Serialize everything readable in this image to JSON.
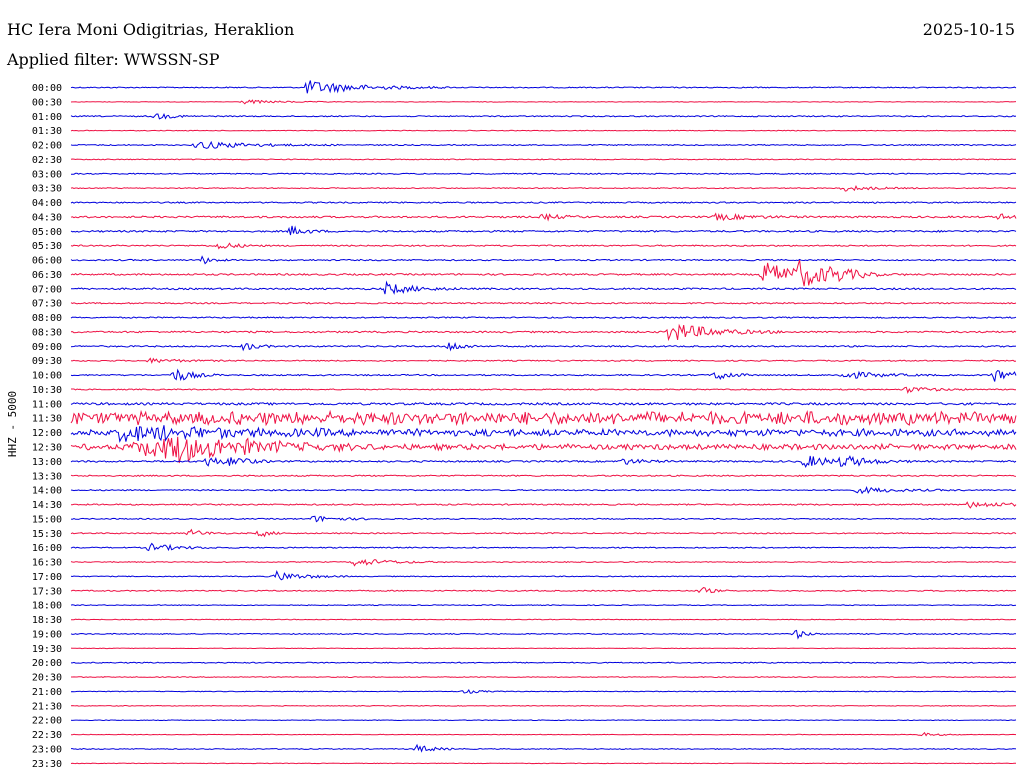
{
  "header": {
    "station": "HC Iera Moni Odigitrias, Heraklion",
    "date": "2025-10-15",
    "filter_label": "Applied filter:",
    "filter_value": "WWSSN-SP"
  },
  "colors": {
    "trace_odd": "#0000dd",
    "trace_even": "#ee1144",
    "background": "#ffffff"
  },
  "chart_data": {
    "type": "line",
    "ylabel": "HHZ - 5000",
    "rows": [
      "00:00",
      "00:30",
      "01:00",
      "01:30",
      "02:00",
      "02:30",
      "03:00",
      "03:30",
      "04:00",
      "04:30",
      "05:00",
      "05:30",
      "06:00",
      "06:30",
      "07:00",
      "07:30",
      "08:00",
      "08:30",
      "09:00",
      "09:30",
      "10:00",
      "10:30",
      "11:00",
      "11:30",
      "12:00",
      "12:30",
      "13:00",
      "13:30",
      "14:00",
      "14:30",
      "15:00",
      "15:30",
      "16:00",
      "16:30",
      "17:00",
      "17:30",
      "18:00",
      "18:30",
      "19:00",
      "19:30",
      "20:00",
      "20:30",
      "21:00",
      "21:30",
      "22:00",
      "22:30",
      "23:00",
      "23:30"
    ],
    "row_minutes": 30,
    "trace_minutes_per_row": [
      0,
      30
    ],
    "noise_level": [
      1,
      0.5,
      1,
      0.6,
      1,
      0.8,
      1,
      0.8,
      1.2,
      1.6,
      1.5,
      1.2,
      1.2,
      1.5,
      1.5,
      1.2,
      1.2,
      1.5,
      1.3,
      1,
      1.2,
      1,
      2,
      9,
      5,
      4,
      1.5,
      1.2,
      1,
      1.2,
      1,
      1,
      1,
      0.8,
      0.8,
      1,
      0.7,
      0.6,
      0.9,
      0.5,
      0.9,
      0.7,
      0.6,
      0.6,
      0.6,
      0.5,
      0.8,
      0.5
    ],
    "events": [
      {
        "row": "00:00",
        "minute": 7.5,
        "amp": 7,
        "dur": 1.5
      },
      {
        "row": "00:30",
        "minute": 5.5,
        "amp": 2,
        "dur": 1
      },
      {
        "row": "01:00",
        "minute": 2.7,
        "amp": 3,
        "dur": 0.5
      },
      {
        "row": "02:00",
        "minute": 4,
        "amp": 4,
        "dur": 1.5
      },
      {
        "row": "03:30",
        "minute": 24.5,
        "amp": 3,
        "dur": 0.8
      },
      {
        "row": "04:30",
        "minute": 15,
        "amp": 3,
        "dur": 0.5
      },
      {
        "row": "04:30",
        "minute": 20.5,
        "amp": 3,
        "dur": 1
      },
      {
        "row": "04:30",
        "minute": 29.5,
        "amp": 3,
        "dur": 0.4
      },
      {
        "row": "05:00",
        "minute": 7,
        "amp": 5,
        "dur": 0.4
      },
      {
        "row": "05:30",
        "minute": 4.7,
        "amp": 4,
        "dur": 0.5
      },
      {
        "row": "06:00",
        "minute": 4.2,
        "amp": 4,
        "dur": 0.3
      },
      {
        "row": "06:30",
        "minute": 22,
        "amp": 12,
        "dur": 1.2
      },
      {
        "row": "06:30",
        "minute": 23.1,
        "amp": 10,
        "dur": 0.8
      },
      {
        "row": "06:30",
        "minute": 24.1,
        "amp": 4,
        "dur": 0.8
      },
      {
        "row": "07:00",
        "minute": 10,
        "amp": 6,
        "dur": 0.8
      },
      {
        "row": "08:30",
        "minute": 19,
        "amp": 10,
        "dur": 1.2
      },
      {
        "row": "09:00",
        "minute": 5.5,
        "amp": 4,
        "dur": 0.4
      },
      {
        "row": "09:00",
        "minute": 12,
        "amp": 5,
        "dur": 0.4
      },
      {
        "row": "09:30",
        "minute": 2.5,
        "amp": 2,
        "dur": 1
      },
      {
        "row": "10:00",
        "minute": 3.3,
        "amp": 7,
        "dur": 0.5
      },
      {
        "row": "10:00",
        "minute": 20.5,
        "amp": 6,
        "dur": 0.4
      },
      {
        "row": "10:00",
        "minute": 24.5,
        "amp": 4,
        "dur": 1
      },
      {
        "row": "10:00",
        "minute": 29.3,
        "amp": 7,
        "dur": 0.6
      },
      {
        "row": "10:30",
        "minute": 26.5,
        "amp": 3,
        "dur": 0.8
      },
      {
        "row": "12:00",
        "minute": 1.5,
        "amp": 6,
        "dur": 2.5
      },
      {
        "row": "12:30",
        "minute": 2,
        "amp": 6,
        "dur": 2.5
      },
      {
        "row": "12:30",
        "minute": 3,
        "amp": 9,
        "dur": 2
      },
      {
        "row": "13:00",
        "minute": 4.3,
        "amp": 5,
        "dur": 0.5
      },
      {
        "row": "13:00",
        "minute": 5.1,
        "amp": 5,
        "dur": 0.5
      },
      {
        "row": "13:00",
        "minute": 17.5,
        "amp": 3,
        "dur": 0.6
      },
      {
        "row": "13:00",
        "minute": 23.3,
        "amp": 6,
        "dur": 0.8
      },
      {
        "row": "13:00",
        "minute": 24.5,
        "amp": 5,
        "dur": 0.8
      },
      {
        "row": "14:00",
        "minute": 25,
        "amp": 3,
        "dur": 1.2
      },
      {
        "row": "14:30",
        "minute": 28.5,
        "amp": 3,
        "dur": 1.2
      },
      {
        "row": "15:00",
        "minute": 7.7,
        "amp": 3,
        "dur": 0.8
      },
      {
        "row": "15:30",
        "minute": 3.8,
        "amp": 4,
        "dur": 0.4
      },
      {
        "row": "15:30",
        "minute": 6,
        "amp": 4,
        "dur": 0.3
      },
      {
        "row": "16:00",
        "minute": 2.5,
        "amp": 4,
        "dur": 0.8
      },
      {
        "row": "16:30",
        "minute": 9,
        "amp": 4,
        "dur": 1
      },
      {
        "row": "17:00",
        "minute": 6.5,
        "amp": 5,
        "dur": 0.8
      },
      {
        "row": "17:30",
        "minute": 20,
        "amp": 4,
        "dur": 0.3
      },
      {
        "row": "19:00",
        "minute": 23,
        "amp": 5,
        "dur": 0.3
      },
      {
        "row": "21:00",
        "minute": 12.5,
        "amp": 2,
        "dur": 0.5
      },
      {
        "row": "22:30",
        "minute": 27,
        "amp": 2,
        "dur": 0.5
      },
      {
        "row": "23:00",
        "minute": 11,
        "amp": 4,
        "dur": 0.5
      }
    ]
  }
}
